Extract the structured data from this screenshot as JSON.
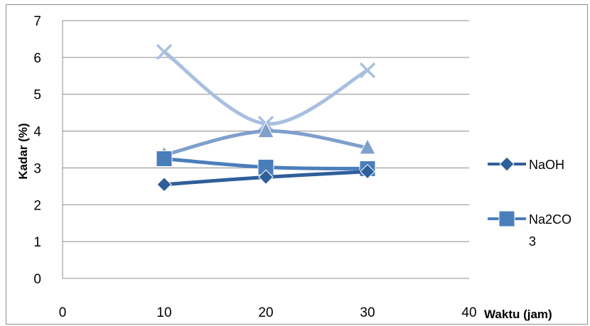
{
  "chart_data": {
    "type": "scatter",
    "xlabel": "Waktu (jam)",
    "ylabel": "Kadar (%)",
    "xlim": [
      0,
      40
    ],
    "ylim": [
      0,
      7
    ],
    "xticks": [
      0,
      10,
      20,
      30,
      40
    ],
    "yticks": [
      0,
      1,
      2,
      3,
      4,
      5,
      6,
      7
    ],
    "grid": "horizontal",
    "smoothed_lines": true,
    "legend_position": "right",
    "series": [
      {
        "name": "NaOH",
        "marker": "diamond",
        "color": "#2f5f9a",
        "x": [
          10,
          20,
          30
        ],
        "y": [
          2.55,
          2.75,
          2.9
        ]
      },
      {
        "name": "Na2CO3",
        "marker": "square",
        "color": "#4a7ebb",
        "x": [
          10,
          20,
          30
        ],
        "y": [
          3.25,
          3.02,
          2.98
        ]
      },
      {
        "marker": "triangle",
        "color": "#7f9fcc",
        "x": [
          10,
          20,
          30
        ],
        "y": [
          3.35,
          4.0,
          3.55
        ]
      },
      {
        "marker": "x",
        "color": "#a9bfdf",
        "x": [
          10,
          20,
          30
        ],
        "y": [
          6.15,
          4.2,
          5.65
        ]
      }
    ],
    "legend_lines": [
      {
        "series_index": 0,
        "lines": [
          "NaOH"
        ]
      },
      {
        "series_index": 1,
        "lines": [
          "Na2CO",
          "3"
        ]
      }
    ]
  }
}
